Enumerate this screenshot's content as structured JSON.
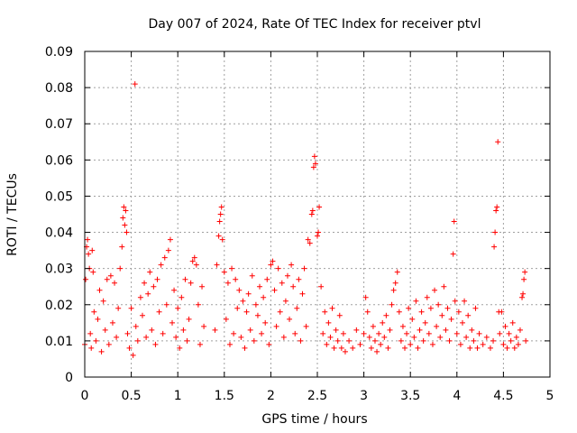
{
  "chart_data": {
    "type": "scatter",
    "title": "Day 007 of 2024, Rate Of TEC Index for receiver ptvl",
    "xlabel": "GPS time / hours",
    "ylabel": "ROTI / TECUs",
    "xlim": [
      0,
      5
    ],
    "ylim": [
      0,
      0.09
    ],
    "xticks": [
      0,
      0.5,
      1,
      1.5,
      2,
      2.5,
      3,
      3.5,
      4,
      4.5,
      5
    ],
    "xtick_labels": [
      "0",
      "0.5",
      "1",
      "1.5",
      "2",
      "2.5",
      "3",
      "3.5",
      "4",
      "4.5",
      "5"
    ],
    "yticks": [
      0,
      0.01,
      0.02,
      0.03,
      0.04,
      0.05,
      0.06,
      0.07,
      0.08,
      0.09
    ],
    "ytick_labels": [
      "0",
      "0.01",
      "0.02",
      "0.03",
      "0.04",
      "0.05",
      "0.06",
      "0.07",
      "0.08",
      "0.09"
    ],
    "grid": true,
    "marker": "+",
    "color": "#ff0000",
    "series": [
      {
        "name": "ROTI",
        "points": [
          [
            0.0,
            0.009
          ],
          [
            0.01,
            0.027
          ],
          [
            0.02,
            0.036
          ],
          [
            0.03,
            0.038
          ],
          [
            0.04,
            0.034
          ],
          [
            0.05,
            0.03
          ],
          [
            0.06,
            0.012
          ],
          [
            0.07,
            0.008
          ],
          [
            0.08,
            0.035
          ],
          [
            0.09,
            0.029
          ],
          [
            0.1,
            0.018
          ],
          [
            0.12,
            0.01
          ],
          [
            0.14,
            0.016
          ],
          [
            0.16,
            0.024
          ],
          [
            0.18,
            0.007
          ],
          [
            0.2,
            0.021
          ],
          [
            0.22,
            0.013
          ],
          [
            0.24,
            0.027
          ],
          [
            0.26,
            0.009
          ],
          [
            0.28,
            0.028
          ],
          [
            0.3,
            0.015
          ],
          [
            0.32,
            0.026
          ],
          [
            0.34,
            0.011
          ],
          [
            0.36,
            0.019
          ],
          [
            0.38,
            0.03
          ],
          [
            0.4,
            0.036
          ],
          [
            0.41,
            0.044
          ],
          [
            0.42,
            0.047
          ],
          [
            0.43,
            0.042
          ],
          [
            0.44,
            0.046
          ],
          [
            0.45,
            0.04
          ],
          [
            0.46,
            0.012
          ],
          [
            0.48,
            0.008
          ],
          [
            0.5,
            0.019
          ],
          [
            0.52,
            0.006
          ],
          [
            0.54,
            0.081
          ],
          [
            0.55,
            0.014
          ],
          [
            0.57,
            0.01
          ],
          [
            0.6,
            0.022
          ],
          [
            0.62,
            0.017
          ],
          [
            0.64,
            0.026
          ],
          [
            0.66,
            0.011
          ],
          [
            0.68,
            0.023
          ],
          [
            0.7,
            0.029
          ],
          [
            0.72,
            0.013
          ],
          [
            0.74,
            0.025
          ],
          [
            0.76,
            0.009
          ],
          [
            0.78,
            0.027
          ],
          [
            0.8,
            0.018
          ],
          [
            0.82,
            0.031
          ],
          [
            0.84,
            0.012
          ],
          [
            0.86,
            0.033
          ],
          [
            0.88,
            0.02
          ],
          [
            0.9,
            0.035
          ],
          [
            0.92,
            0.038
          ],
          [
            0.94,
            0.015
          ],
          [
            0.96,
            0.024
          ],
          [
            0.98,
            0.011
          ],
          [
            1.0,
            0.019
          ],
          [
            1.02,
            0.008
          ],
          [
            1.04,
            0.022
          ],
          [
            1.06,
            0.013
          ],
          [
            1.08,
            0.027
          ],
          [
            1.1,
            0.01
          ],
          [
            1.12,
            0.016
          ],
          [
            1.14,
            0.026
          ],
          [
            1.16,
            0.032
          ],
          [
            1.18,
            0.033
          ],
          [
            1.2,
            0.031
          ],
          [
            1.22,
            0.02
          ],
          [
            1.24,
            0.009
          ],
          [
            1.26,
            0.025
          ],
          [
            1.28,
            0.014
          ],
          [
            1.4,
            0.013
          ],
          [
            1.42,
            0.031
          ],
          [
            1.44,
            0.039
          ],
          [
            1.45,
            0.043
          ],
          [
            1.46,
            0.045
          ],
          [
            1.47,
            0.047
          ],
          [
            1.48,
            0.038
          ],
          [
            1.5,
            0.029
          ],
          [
            1.52,
            0.016
          ],
          [
            1.54,
            0.026
          ],
          [
            1.56,
            0.009
          ],
          [
            1.58,
            0.03
          ],
          [
            1.6,
            0.012
          ],
          [
            1.62,
            0.027
          ],
          [
            1.64,
            0.019
          ],
          [
            1.66,
            0.024
          ],
          [
            1.68,
            0.011
          ],
          [
            1.7,
            0.021
          ],
          [
            1.72,
            0.008
          ],
          [
            1.74,
            0.018
          ],
          [
            1.76,
            0.023
          ],
          [
            1.78,
            0.013
          ],
          [
            1.8,
            0.028
          ],
          [
            1.82,
            0.01
          ],
          [
            1.84,
            0.02
          ],
          [
            1.86,
            0.017
          ],
          [
            1.88,
            0.025
          ],
          [
            1.9,
            0.012
          ],
          [
            1.92,
            0.022
          ],
          [
            1.94,
            0.015
          ],
          [
            1.96,
            0.027
          ],
          [
            1.98,
            0.009
          ],
          [
            2.0,
            0.031
          ],
          [
            2.02,
            0.032
          ],
          [
            2.04,
            0.024
          ],
          [
            2.06,
            0.014
          ],
          [
            2.08,
            0.03
          ],
          [
            2.1,
            0.018
          ],
          [
            2.12,
            0.026
          ],
          [
            2.14,
            0.011
          ],
          [
            2.16,
            0.021
          ],
          [
            2.18,
            0.028
          ],
          [
            2.2,
            0.016
          ],
          [
            2.22,
            0.031
          ],
          [
            2.24,
            0.025
          ],
          [
            2.26,
            0.012
          ],
          [
            2.28,
            0.019
          ],
          [
            2.3,
            0.027
          ],
          [
            2.32,
            0.01
          ],
          [
            2.34,
            0.023
          ],
          [
            2.36,
            0.03
          ],
          [
            2.38,
            0.014
          ],
          [
            2.4,
            0.038
          ],
          [
            2.42,
            0.037
          ],
          [
            2.44,
            0.045
          ],
          [
            2.45,
            0.046
          ],
          [
            2.46,
            0.058
          ],
          [
            2.47,
            0.061
          ],
          [
            2.48,
            0.059
          ],
          [
            2.5,
            0.039
          ],
          [
            2.51,
            0.04
          ],
          [
            2.52,
            0.047
          ],
          [
            2.54,
            0.025
          ],
          [
            2.56,
            0.012
          ],
          [
            2.58,
            0.018
          ],
          [
            2.6,
            0.009
          ],
          [
            2.62,
            0.015
          ],
          [
            2.64,
            0.011
          ],
          [
            2.66,
            0.019
          ],
          [
            2.68,
            0.008
          ],
          [
            2.7,
            0.013
          ],
          [
            2.72,
            0.01
          ],
          [
            2.74,
            0.017
          ],
          [
            2.76,
            0.008
          ],
          [
            2.78,
            0.012
          ],
          [
            2.8,
            0.007
          ],
          [
            2.84,
            0.01
          ],
          [
            2.88,
            0.008
          ],
          [
            2.92,
            0.013
          ],
          [
            2.96,
            0.009
          ],
          [
            3.0,
            0.012
          ],
          [
            3.02,
            0.022
          ],
          [
            3.04,
            0.018
          ],
          [
            3.06,
            0.011
          ],
          [
            3.08,
            0.008
          ],
          [
            3.1,
            0.014
          ],
          [
            3.12,
            0.01
          ],
          [
            3.14,
            0.007
          ],
          [
            3.16,
            0.012
          ],
          [
            3.18,
            0.009
          ],
          [
            3.2,
            0.015
          ],
          [
            3.22,
            0.011
          ],
          [
            3.24,
            0.017
          ],
          [
            3.26,
            0.008
          ],
          [
            3.28,
            0.013
          ],
          [
            3.3,
            0.02
          ],
          [
            3.32,
            0.024
          ],
          [
            3.34,
            0.026
          ],
          [
            3.36,
            0.029
          ],
          [
            3.38,
            0.018
          ],
          [
            3.4,
            0.01
          ],
          [
            3.42,
            0.014
          ],
          [
            3.44,
            0.008
          ],
          [
            3.46,
            0.012
          ],
          [
            3.48,
            0.019
          ],
          [
            3.5,
            0.009
          ],
          [
            3.52,
            0.016
          ],
          [
            3.54,
            0.011
          ],
          [
            3.56,
            0.021
          ],
          [
            3.58,
            0.008
          ],
          [
            3.6,
            0.013
          ],
          [
            3.62,
            0.018
          ],
          [
            3.64,
            0.01
          ],
          [
            3.66,
            0.015
          ],
          [
            3.68,
            0.022
          ],
          [
            3.7,
            0.012
          ],
          [
            3.72,
            0.019
          ],
          [
            3.74,
            0.009
          ],
          [
            3.76,
            0.024
          ],
          [
            3.78,
            0.014
          ],
          [
            3.8,
            0.02
          ],
          [
            3.82,
            0.011
          ],
          [
            3.84,
            0.017
          ],
          [
            3.86,
            0.025
          ],
          [
            3.88,
            0.013
          ],
          [
            3.9,
            0.019
          ],
          [
            3.92,
            0.01
          ],
          [
            3.94,
            0.016
          ],
          [
            3.96,
            0.034
          ],
          [
            3.97,
            0.043
          ],
          [
            3.98,
            0.021
          ],
          [
            4.0,
            0.012
          ],
          [
            4.02,
            0.018
          ],
          [
            4.04,
            0.009
          ],
          [
            4.06,
            0.015
          ],
          [
            4.08,
            0.021
          ],
          [
            4.1,
            0.011
          ],
          [
            4.12,
            0.017
          ],
          [
            4.14,
            0.008
          ],
          [
            4.16,
            0.013
          ],
          [
            4.18,
            0.01
          ],
          [
            4.2,
            0.019
          ],
          [
            4.22,
            0.008
          ],
          [
            4.24,
            0.012
          ],
          [
            4.28,
            0.009
          ],
          [
            4.32,
            0.011
          ],
          [
            4.36,
            0.008
          ],
          [
            4.39,
            0.01
          ],
          [
            4.4,
            0.036
          ],
          [
            4.41,
            0.04
          ],
          [
            4.42,
            0.046
          ],
          [
            4.43,
            0.047
          ],
          [
            4.44,
            0.065
          ],
          [
            4.45,
            0.018
          ],
          [
            4.46,
            0.012
          ],
          [
            4.48,
            0.018
          ],
          [
            4.5,
            0.009
          ],
          [
            4.52,
            0.014
          ],
          [
            4.54,
            0.008
          ],
          [
            4.56,
            0.012
          ],
          [
            4.58,
            0.01
          ],
          [
            4.6,
            0.015
          ],
          [
            4.62,
            0.008
          ],
          [
            4.64,
            0.011
          ],
          [
            4.66,
            0.009
          ],
          [
            4.68,
            0.013
          ],
          [
            4.7,
            0.022
          ],
          [
            4.71,
            0.023
          ],
          [
            4.72,
            0.027
          ],
          [
            4.73,
            0.029
          ],
          [
            4.74,
            0.01
          ]
        ]
      }
    ]
  }
}
